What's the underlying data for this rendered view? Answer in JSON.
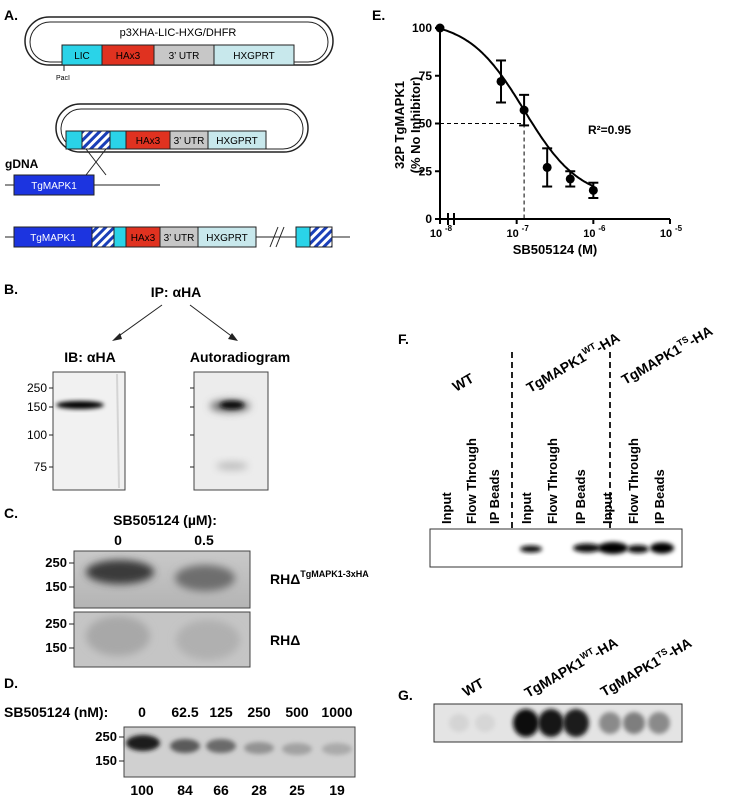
{
  "panels": {
    "A": "A.",
    "B": "B.",
    "C": "C.",
    "D": "D.",
    "E": "E.",
    "F": "F.",
    "G": "G."
  },
  "panelA": {
    "plasmid_name": "p3XHA-LIC-HXG/DHFR",
    "lic": "LIC",
    "hax3": "HAx3",
    "utr": "3’ UTR",
    "hxgprt": "HXGPRT",
    "paci": "PacI",
    "gdna": "gDNA",
    "tgmapk1": "TgMAPK1"
  },
  "panelB": {
    "ip": "IP: αHA",
    "ib": "IB: αHA",
    "autoradiogram": "Autoradiogram",
    "mw": [
      "250",
      "150",
      "100",
      "75"
    ]
  },
  "panelC": {
    "drug": "SB505124 (µM):",
    "conc": [
      "0",
      "0.5"
    ],
    "mw": [
      "250",
      "150"
    ],
    "strain_top": "RHΔ",
    "strain_top_sup": "TgMAPK1-3xHA",
    "strain_bottom": "RHΔ"
  },
  "panelD": {
    "drug": "SB505124 (nM):",
    "conc": [
      "0",
      "62.5",
      "125",
      "250",
      "500",
      "1000"
    ],
    "mw": [
      "250",
      "150"
    ],
    "quant": [
      "100",
      "84",
      "66",
      "28",
      "25",
      "19"
    ]
  },
  "chart_data": {
    "type": "scatter",
    "xlabel": "SB505124 (M)",
    "ylabel_line1": "32P TgMAPK1",
    "ylabel_line2": "(% No Inhibitor)",
    "x_scale": "log",
    "xlim": [
      1e-08,
      1e-05
    ],
    "ylim": [
      0,
      100
    ],
    "yticks": [
      "0",
      "25",
      "50",
      "75",
      "100"
    ],
    "xticks": [
      "10",
      "10",
      "10",
      "10"
    ],
    "xtick_exp": [
      "-8",
      "-7",
      "-6",
      "-5"
    ],
    "points": [
      {
        "x": 1e-08,
        "y": 100,
        "err": 0
      },
      {
        "x": 6.25e-08,
        "y": 72,
        "err": 11
      },
      {
        "x": 1.25e-07,
        "y": 57,
        "err": 8
      },
      {
        "x": 2.5e-07,
        "y": 27,
        "err": 10
      },
      {
        "x": 5e-07,
        "y": 21,
        "err": 4
      },
      {
        "x": 1e-06,
        "y": 15,
        "err": 4
      }
    ],
    "ic50": 1.25e-07,
    "annotation": "R²=0.95",
    "grid": false
  },
  "panelF": {
    "groups": [
      "WT",
      "TgMAPK1",
      "TgMAPK1"
    ],
    "groups_sup": [
      "",
      "WT",
      "TS"
    ],
    "groups_suffix": [
      "",
      "-HA",
      "-HA"
    ],
    "lanes": [
      "Input",
      "Flow Through",
      "IP Beads",
      "Input",
      "Flow Through",
      "IP Beads",
      "Input",
      "Flow Through",
      "IP Beads"
    ]
  },
  "panelG": {
    "groups": [
      "WT",
      "TgMAPK1",
      "TgMAPK1"
    ],
    "groups_sup": [
      "",
      "WT",
      "TS"
    ],
    "groups_suffix": [
      "",
      "-HA",
      "-HA"
    ]
  }
}
